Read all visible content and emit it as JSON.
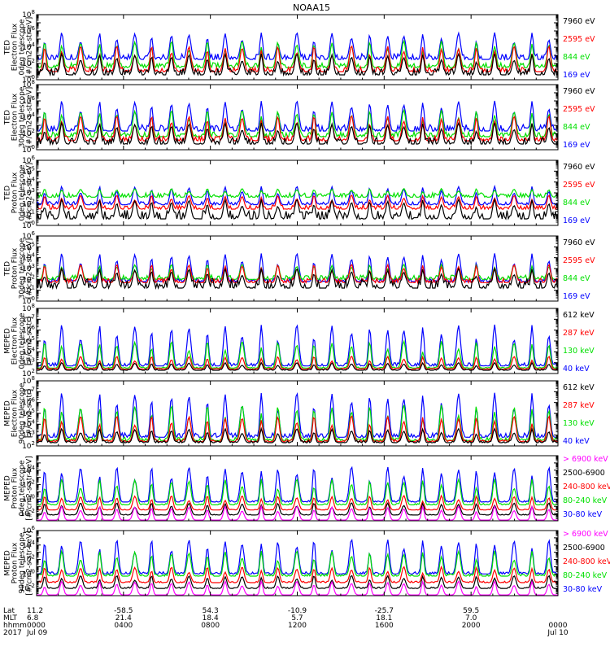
{
  "title": "NOAA15",
  "colors": {
    "black": "#000000",
    "blue": "#0000ff",
    "red": "#ff0000",
    "green": "#00e000",
    "magenta": "#ff00ff"
  },
  "chart_data": [
    {
      "type": "line",
      "ylabel": [
        "TED",
        "Electron Flux",
        "0deg telescope",
        "[#/cm2-s-str-eV]"
      ],
      "yscale": "log",
      "ylim_exp": [
        0,
        8
      ],
      "yticks": [
        {
          "e": 0,
          "label": "10^0"
        },
        {
          "e": 2,
          "label": "10^2"
        },
        {
          "e": 4,
          "label": "10^4"
        },
        {
          "e": 6,
          "label": "10^6"
        },
        {
          "e": 8,
          "label": "10^8"
        }
      ],
      "series": [
        {
          "name": "7960 eV",
          "color": "#000000",
          "base": 0.6,
          "noise": 0.8,
          "peak": 3.2
        },
        {
          "name": "2595 eV",
          "color": "#ff0000",
          "base": 1.0,
          "noise": 0.6,
          "peak": 4.2
        },
        {
          "name": "844 eV",
          "color": "#00e000",
          "base": 1.5,
          "noise": 0.6,
          "peak": 4.8
        },
        {
          "name": "169 eV",
          "color": "#0000ff",
          "base": 2.5,
          "noise": 0.7,
          "peak": 5.8
        }
      ]
    },
    {
      "type": "line",
      "ylabel": [
        "TED",
        "Electron Flux",
        "30deg telescope",
        "[#/cm2-s-str-eV]"
      ],
      "yscale": "log",
      "ylim_exp": [
        0,
        8
      ],
      "yticks": [
        {
          "e": 0,
          "label": "10^0"
        },
        {
          "e": 2,
          "label": "10^2"
        },
        {
          "e": 4,
          "label": "10^4"
        },
        {
          "e": 6,
          "label": "10^6"
        },
        {
          "e": 8,
          "label": "10^8"
        }
      ],
      "series": [
        {
          "name": "7960 eV",
          "color": "#000000",
          "base": 0.7,
          "noise": 0.8,
          "peak": 3.3
        },
        {
          "name": "2595 eV",
          "color": "#ff0000",
          "base": 1.1,
          "noise": 0.6,
          "peak": 4.2
        },
        {
          "name": "844 eV",
          "color": "#00e000",
          "base": 1.6,
          "noise": 0.6,
          "peak": 4.9
        },
        {
          "name": "169 eV",
          "color": "#0000ff",
          "base": 2.3,
          "noise": 0.8,
          "peak": 6.0
        }
      ]
    },
    {
      "type": "line",
      "ylabel": [
        "TED",
        "Proton Flux",
        "0deg telescope",
        "[#/cm2-s-str-eV]"
      ],
      "yscale": "log",
      "ylim_exp": [
        0,
        6
      ],
      "yticks": [
        {
          "e": 0,
          "label": "10^0"
        },
        {
          "e": 1,
          "label": "10^1"
        },
        {
          "e": 2,
          "label": "10^2"
        },
        {
          "e": 3,
          "label": "10^3"
        },
        {
          "e": 4,
          "label": "10^4"
        },
        {
          "e": 5,
          "label": "10^5"
        },
        {
          "e": 6,
          "label": "10^6"
        }
      ],
      "series": [
        {
          "name": "7960 eV",
          "color": "#000000",
          "base": 0.6,
          "noise": 0.8,
          "peak": 2.4
        },
        {
          "name": "2595 eV",
          "color": "#ff0000",
          "base": 1.5,
          "noise": 0.4,
          "peak": 2.8
        },
        {
          "name": "844 eV",
          "color": "#00e000",
          "base": 2.6,
          "noise": 0.4,
          "peak": 3.4
        },
        {
          "name": "169 eV",
          "color": "#0000ff",
          "base": 1.9,
          "noise": 0.3,
          "peak": 3.6
        }
      ]
    },
    {
      "type": "line",
      "ylabel": [
        "TED",
        "Proton Flux",
        "30deg telescope",
        "[#/cm2-s-str-eV]"
      ],
      "yscale": "log",
      "ylim_exp": [
        0,
        6
      ],
      "yticks": [
        {
          "e": 0,
          "label": "10^0"
        },
        {
          "e": 1,
          "label": "10^1"
        },
        {
          "e": 2,
          "label": "10^2"
        },
        {
          "e": 3,
          "label": "10^3"
        },
        {
          "e": 4,
          "label": "10^4"
        },
        {
          "e": 5,
          "label": "10^5"
        },
        {
          "e": 6,
          "label": "10^6"
        }
      ],
      "series": [
        {
          "name": "7960 eV",
          "color": "#000000",
          "base": 1.2,
          "noise": 0.9,
          "peak": 3.0
        },
        {
          "name": "2595 eV",
          "color": "#ff0000",
          "base": 1.7,
          "noise": 0.4,
          "peak": 3.4
        },
        {
          "name": "844 eV",
          "color": "#00e000",
          "base": 2.0,
          "noise": 0.4,
          "peak": 3.4
        },
        {
          "name": "169 eV",
          "color": "#0000ff",
          "base": 1.8,
          "noise": 0.3,
          "peak": 4.4
        }
      ]
    },
    {
      "type": "line",
      "ylabel": [
        "MEPED",
        "Electron Flux",
        "0deg telescope",
        "[#/cm2-s-str]"
      ],
      "yscale": "log",
      "ylim_exp": [
        2,
        8
      ],
      "yticks": [
        {
          "e": 2,
          "label": "10^2"
        },
        {
          "e": 3,
          "label": "10^3"
        },
        {
          "e": 4,
          "label": "10^4"
        },
        {
          "e": 5,
          "label": "10^5"
        },
        {
          "e": 6,
          "label": "10^6"
        },
        {
          "e": 7,
          "label": "10^7"
        },
        {
          "e": 8,
          "label": "10^8"
        }
      ],
      "series": [
        {
          "name": "612 keV",
          "color": "#000000",
          "base": 2.3,
          "noise": 0.1,
          "peak": 3.0
        },
        {
          "name": "287 keV",
          "color": "#ff0000",
          "base": 2.4,
          "noise": 0.1,
          "peak": 3.6
        },
        {
          "name": "130 keV",
          "color": "#00e000",
          "base": 2.5,
          "noise": 0.1,
          "peak": 5.0
        },
        {
          "name": "40 keV",
          "color": "#0000ff",
          "base": 2.7,
          "noise": 0.3,
          "peak": 6.5
        }
      ]
    },
    {
      "type": "line",
      "ylabel": [
        "MEPED",
        "Electron Flux",
        "90deg telescope",
        "[#/cm2-s-str]"
      ],
      "yscale": "log",
      "ylim_exp": [
        2,
        8
      ],
      "yticks": [
        {
          "e": 2,
          "label": "10^2"
        },
        {
          "e": 3,
          "label": "10^3"
        },
        {
          "e": 4,
          "label": "10^4"
        },
        {
          "e": 5,
          "label": "10^5"
        },
        {
          "e": 6,
          "label": "10^6"
        },
        {
          "e": 7,
          "label": "10^7"
        },
        {
          "e": 8,
          "label": "10^8"
        }
      ],
      "series": [
        {
          "name": "612 keV",
          "color": "#000000",
          "base": 2.3,
          "noise": 0.2,
          "peak": 3.6
        },
        {
          "name": "287 keV",
          "color": "#ff0000",
          "base": 2.4,
          "noise": 0.2,
          "peak": 4.8
        },
        {
          "name": "130 keV",
          "color": "#00e000",
          "base": 2.5,
          "noise": 0.3,
          "peak": 5.8
        },
        {
          "name": "40 keV",
          "color": "#0000ff",
          "base": 2.8,
          "noise": 0.4,
          "peak": 6.9
        }
      ]
    },
    {
      "type": "line",
      "ylabel": [
        "MEPED",
        "Proton Flux",
        "0deg telescope",
        "[#/cm2-s-str-keV]"
      ],
      "yscale": "log",
      "ylim_exp": [
        -3,
        6
      ],
      "yticks": [
        {
          "e": -2,
          "label": "10^-2"
        },
        {
          "e": 0,
          "label": "10^0"
        },
        {
          "e": 2,
          "label": "10^2"
        },
        {
          "e": 4,
          "label": "10^4"
        }
      ],
      "series": [
        {
          "name": "> 6900 keV",
          "color": "#ff00ff",
          "base": -2.9,
          "noise": 0.0,
          "peak": -1.0
        },
        {
          "name": "2500-6900",
          "color": "#000000",
          "base": -2.2,
          "noise": 0.1,
          "peak": -0.5
        },
        {
          "name": "240-800 keV",
          "color": "#ff0000",
          "base": -1.5,
          "noise": 0.1,
          "peak": 0.5
        },
        {
          "name": "80-240 keV",
          "color": "#00e000",
          "base": -0.8,
          "noise": 0.2,
          "peak": 2.8
        },
        {
          "name": "30-80 keV",
          "color": "#0000ff",
          "base": -0.4,
          "noise": 0.2,
          "peak": 4.5
        }
      ]
    },
    {
      "type": "line",
      "ylabel": [
        "MEPED",
        "Proton Flux",
        "90deg telescope",
        "[#/cm2-s-str-keV]"
      ],
      "yscale": "log",
      "ylim_exp": [
        -3,
        6
      ],
      "yticks": [
        {
          "e": -2,
          "label": "10^-2"
        },
        {
          "e": 0,
          "label": "10^0"
        },
        {
          "e": 2,
          "label": "10^2"
        },
        {
          "e": 4,
          "label": "10^4"
        },
        {
          "e": 6,
          "label": "10^6"
        }
      ],
      "series": [
        {
          "name": "> 6900 keV",
          "color": "#ff00ff",
          "base": -2.9,
          "noise": 0.0,
          "peak": -1.0
        },
        {
          "name": "2500-6900",
          "color": "#000000",
          "base": -2.0,
          "noise": 0.2,
          "peak": -0.2
        },
        {
          "name": "240-800 keV",
          "color": "#ff0000",
          "base": -1.2,
          "noise": 0.2,
          "peak": 1.0
        },
        {
          "name": "80-240 keV",
          "color": "#00e000",
          "base": -0.3,
          "noise": 0.3,
          "peak": 3.2
        },
        {
          "name": "30-80 keV",
          "color": "#0000ff",
          "base": 0.0,
          "noise": 0.3,
          "peak": 4.8
        }
      ]
    }
  ],
  "xaxis": {
    "row_labels": [
      "Lat",
      "MLT",
      "hhmm",
      "2017"
    ],
    "ticks": [
      {
        "hour": 0,
        "lat": "11.2",
        "mlt": "6.8",
        "hhmm": "0000",
        "date": "Jul 09"
      },
      {
        "hour": 4,
        "lat": "-58.5",
        "mlt": "21.4",
        "hhmm": "0400",
        "date": ""
      },
      {
        "hour": 8,
        "lat": "54.3",
        "mlt": "18.4",
        "hhmm": "0800",
        "date": ""
      },
      {
        "hour": 12,
        "lat": "-10.9",
        "mlt": "5.7",
        "hhmm": "1200",
        "date": ""
      },
      {
        "hour": 16,
        "lat": "-25.7",
        "mlt": "18.1",
        "hhmm": "1600",
        "date": ""
      },
      {
        "hour": 20,
        "lat": "59.5",
        "mlt": "7.0",
        "hhmm": "2000",
        "date": ""
      },
      {
        "hour": 24,
        "lat": "",
        "mlt": "",
        "hhmm": "0000",
        "date": "Jul 10"
      }
    ],
    "hour_range": [
      0,
      24
    ]
  }
}
